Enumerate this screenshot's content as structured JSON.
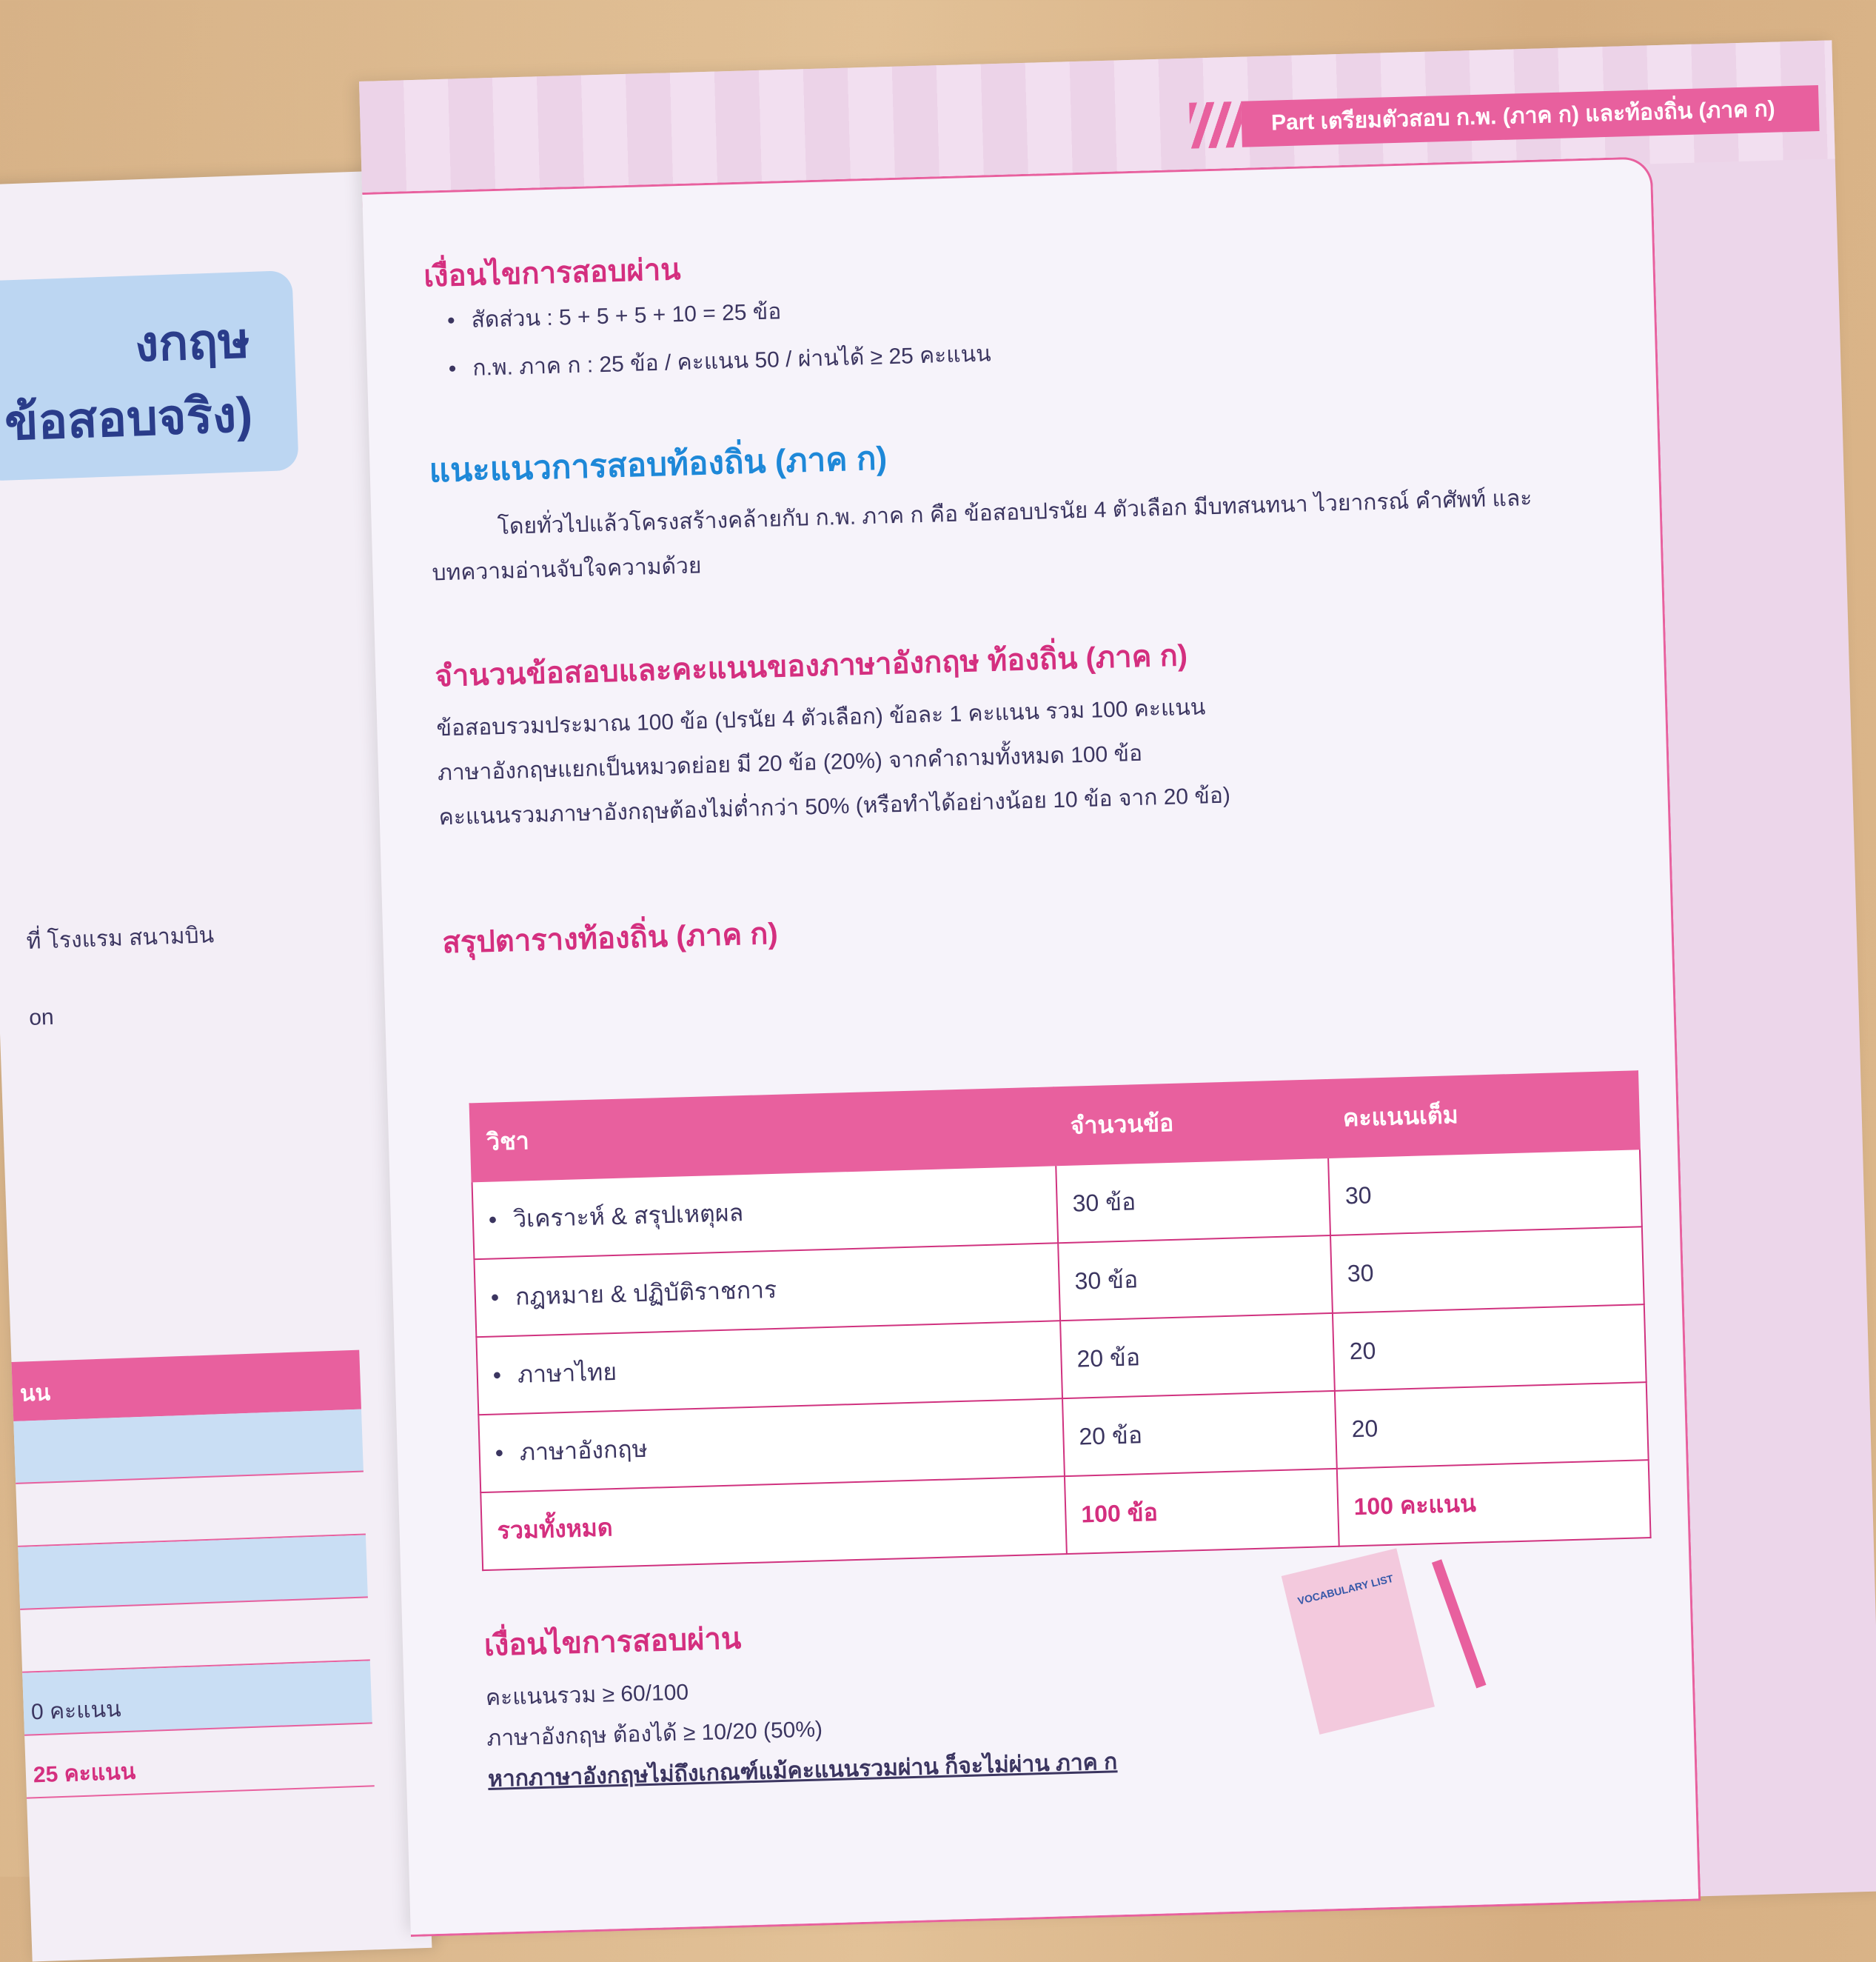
{
  "left_page": {
    "title_lines": [
      "งกฤษ",
      "ข้อสอบจริง)"
    ],
    "fragments": [
      "ที่ โรงแรม สนามบิน",
      "on"
    ],
    "table_header": "นน",
    "table_rows": [
      "",
      "",
      "",
      "",
      "0 คะแนน",
      "25 คะแนน"
    ]
  },
  "header": {
    "part_label": "Part เตรียมตัวสอบ ก.พ. (ภาค ก) และท้องถิ่น (ภาค ก)"
  },
  "section1": {
    "title": "เงื่อนไขการสอบผ่าน",
    "bullets": [
      "สัดส่วน : 5 + 5 + 5 + 10 = 25 ข้อ",
      "ก.พ. ภาค ก : 25 ข้อ / คะแนน 50 / ผ่านได้ ≥ 25 คะแนน"
    ]
  },
  "section2": {
    "title": "แนะแนวการสอบท้องถิ่น (ภาค ก)",
    "body_line1": "โดยทั่วไปแล้วโครงสร้างคล้ายกับ ก.พ. ภาค ก คือ ข้อสอบปรนัย 4 ตัวเลือก มีบทสนทนา ไวยากรณ์ คำศัพท์ และ",
    "body_line2": "บทความอ่านจับใจความด้วย"
  },
  "section3": {
    "title": "จำนวนข้อสอบและคะแนนของภาษาอังกฤษ ท้องถิ่น (ภาค ก)",
    "lines": [
      "ข้อสอบรวมประมาณ 100 ข้อ (ปรนัย 4 ตัวเลือก) ข้อละ 1 คะแนน รวม 100 คะแนน",
      "ภาษาอังกฤษแยกเป็นหมวดย่อย มี 20 ข้อ (20%) จากคำถามทั้งหมด 100 ข้อ",
      "คะแนนรวมภาษาอังกฤษต้องไม่ต่ำกว่า 50% (หรือทำได้อย่างน้อย 10 ข้อ จาก 20 ข้อ)"
    ]
  },
  "section4": {
    "title": "สรุปตารางท้องถิ่น (ภาค ก)",
    "columns": [
      "วิชา",
      "จำนวนข้อ",
      "คะแนนเต็ม"
    ],
    "rows": [
      [
        "วิเคราะห์ & สรุปเหตุผล",
        "30 ข้อ",
        "30"
      ],
      [
        "กฎหมาย & ปฏิบัติราชการ",
        "30 ข้อ",
        "30"
      ],
      [
        "ภาษาไทย",
        "20 ข้อ",
        "20"
      ],
      [
        "ภาษาอังกฤษ",
        "20 ข้อ",
        "20"
      ]
    ],
    "total": [
      "รวมทั้งหมด",
      "100 ข้อ",
      "100 คะแนน"
    ]
  },
  "section5": {
    "title": "เงื่อนไขการสอบผ่าน",
    "lines": [
      "คะแนนรวม ≥ 60/100",
      "ภาษาอังกฤษ ต้องได้ ≥ 10/20 (50%)"
    ],
    "note": "หากภาษาอังกฤษไม่ถึงเกณฑ์แม้คะแนนรวมผ่าน ก็จะไม่ผ่าน ภาค ก"
  },
  "illustration": {
    "vocab_card": "VOCABULARY LIST"
  },
  "colors": {
    "accent_pink": "#e8609e",
    "heading_blue": "#1e88d8",
    "text": "#3b3560"
  }
}
